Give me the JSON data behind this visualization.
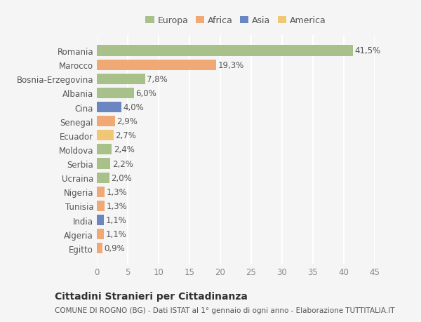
{
  "categories": [
    "Romania",
    "Marocco",
    "Bosnia-Erzegovina",
    "Albania",
    "Cina",
    "Senegal",
    "Ecuador",
    "Moldova",
    "Serbia",
    "Ucraina",
    "Nigeria",
    "Tunisia",
    "India",
    "Algeria",
    "Egitto"
  ],
  "values": [
    41.5,
    19.3,
    7.8,
    6.0,
    4.0,
    2.9,
    2.7,
    2.4,
    2.2,
    2.0,
    1.3,
    1.3,
    1.1,
    1.1,
    0.9
  ],
  "colors": [
    "#a8c08a",
    "#f0a875",
    "#a8c08a",
    "#a8c08a",
    "#6b86c0",
    "#f0a875",
    "#f0c875",
    "#a8c08a",
    "#a8c08a",
    "#a8c08a",
    "#f0a875",
    "#f0a875",
    "#6b86c0",
    "#f0a875",
    "#f0a875"
  ],
  "labels": [
    "41,5%",
    "19,3%",
    "7,8%",
    "6,0%",
    "4,0%",
    "2,9%",
    "2,7%",
    "2,4%",
    "2,2%",
    "2,0%",
    "1,3%",
    "1,3%",
    "1,1%",
    "1,1%",
    "0,9%"
  ],
  "legend": [
    {
      "label": "Europa",
      "color": "#a8c08a"
    },
    {
      "label": "Africa",
      "color": "#f0a875"
    },
    {
      "label": "Asia",
      "color": "#6b86c0"
    },
    {
      "label": "America",
      "color": "#f0c875"
    }
  ],
  "xlim": [
    0,
    45
  ],
  "xticks": [
    0,
    5,
    10,
    15,
    20,
    25,
    30,
    35,
    40,
    45
  ],
  "title": "Cittadini Stranieri per Cittadinanza",
  "subtitle": "COMUNE DI ROGNO (BG) - Dati ISTAT al 1° gennaio di ogni anno - Elaborazione TUTTITALIA.IT",
  "bg_color": "#f5f5f5",
  "grid_color": "#ffffff",
  "bar_height": 0.75,
  "label_fontsize": 8.5,
  "tick_fontsize": 8.5,
  "title_fontsize": 10,
  "subtitle_fontsize": 7.5
}
